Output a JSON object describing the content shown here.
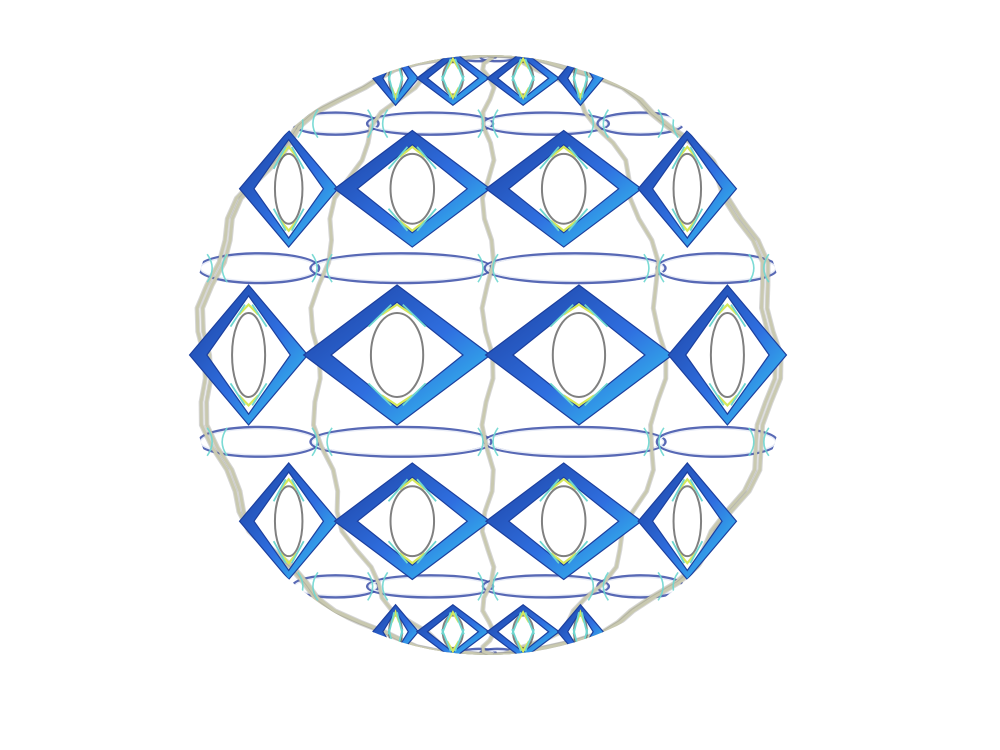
{
  "image": {
    "kind": "3d-render",
    "subject": "sphere-lattice",
    "background_color": "#ffffff",
    "colors": {
      "diamond_dark": "#1c3f9e",
      "diamond_mid": "#2f6fe0",
      "diamond_light": "#35d6f2",
      "ring_outer": "#3b4fa8",
      "ring_inner": "#e8ecf7",
      "strand": "#c9c9b0",
      "strand_shadow": "#8a8a8a",
      "accent_cyan": "#6ed7d0",
      "accent_yellow": "#d6e85a",
      "inner_coil": "#4a4a4a"
    },
    "grid": {
      "rows": 5,
      "columns": 6
    }
  }
}
